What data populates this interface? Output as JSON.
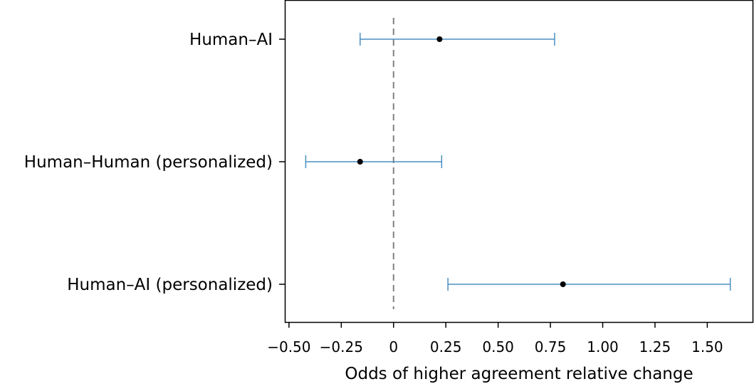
{
  "chart_data": {
    "type": "forest",
    "xlabel": "Odds of higher agreement relative change",
    "xlim": [
      -0.52,
      1.72
    ],
    "xticks": [
      {
        "value": -0.5,
        "label": "−0.50"
      },
      {
        "value": -0.25,
        "label": "−0.25"
      },
      {
        "value": 0,
        "label": "0"
      },
      {
        "value": 0.25,
        "label": "0.25"
      },
      {
        "value": 0.5,
        "label": "0.50"
      },
      {
        "value": 0.75,
        "label": "0.75"
      },
      {
        "value": 1.0,
        "label": "1.00"
      },
      {
        "value": 1.25,
        "label": "1.25"
      },
      {
        "value": 1.5,
        "label": "1.50"
      }
    ],
    "reference_line": 0,
    "categories": [
      "Human–AI",
      "Human–Human (personalized)",
      "Human–AI (personalized)"
    ],
    "estimates": [
      0.22,
      -0.16,
      0.81
    ],
    "ci_low": [
      -0.16,
      -0.42,
      0.26
    ],
    "ci_high": [
      0.77,
      0.23,
      1.61
    ],
    "grid": false,
    "colors": {
      "errorbar": "#4a8fc0",
      "point": "#000000",
      "reference": "#808080",
      "axis": "#000000"
    }
  }
}
